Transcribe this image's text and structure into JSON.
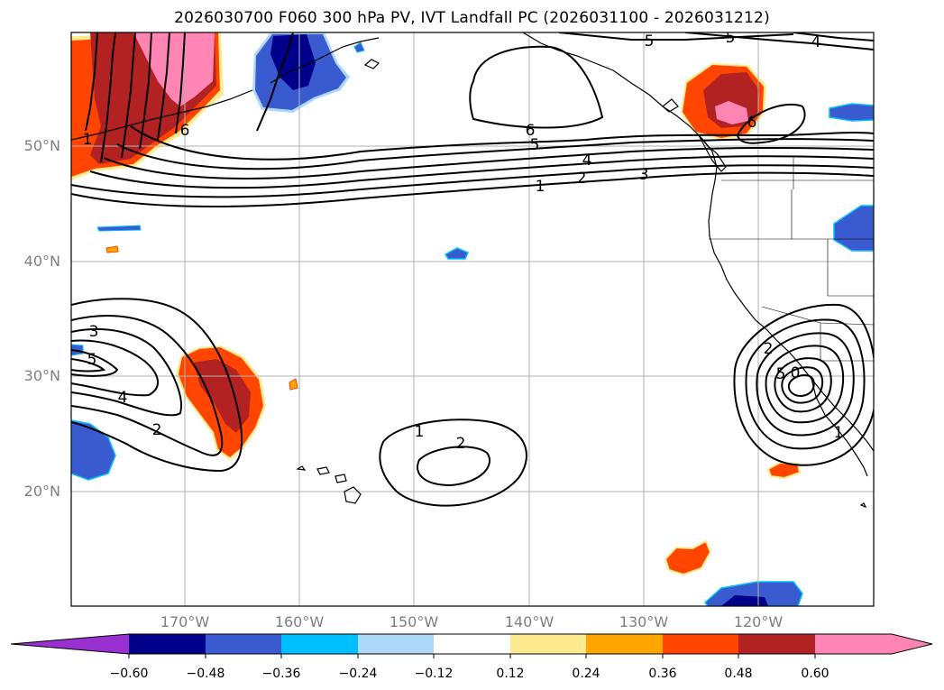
{
  "title": "2026030700 F060 300 hPa PV, IVT Landfall PC (2026031100 - 2026031212)",
  "lat_labels": [
    "50°N",
    "40°N",
    "30°N",
    "20°N"
  ],
  "lon_labels": [
    "170°W",
    "160°W",
    "150°W",
    "140°W",
    "130°W",
    "120°W"
  ],
  "contour_labels": {
    "ridge_n": [
      "6",
      "5",
      "4",
      "3",
      "2",
      "1"
    ],
    "top_edge": [
      "5",
      "5",
      "4"
    ],
    "nw_trough": [
      "1",
      "6"
    ],
    "subtrop_w": [
      "3",
      "5",
      "4",
      "2"
    ],
    "central": [
      "1",
      "2"
    ],
    "east_low": [
      "2",
      "5",
      "0",
      "1"
    ],
    "ne_ridge": [
      "6"
    ]
  },
  "colorbar": {
    "ticks": [
      "−0.60",
      "−0.48",
      "−0.36",
      "−0.24",
      "−0.12",
      "0.12",
      "0.24",
      "0.36",
      "0.48",
      "0.60"
    ],
    "colors": [
      "#9b30d0",
      "#00008b",
      "#3a5bd0",
      "#00bfff",
      "#add8f6",
      "#ffffff",
      "#ffeb8f",
      "#ffa500",
      "#ff4500",
      "#b22222",
      "#ff85b4",
      "#ff85b4"
    ]
  },
  "colors": {
    "land_line": "#000000",
    "grid": "#b0b0b0",
    "contour": "#000000"
  }
}
